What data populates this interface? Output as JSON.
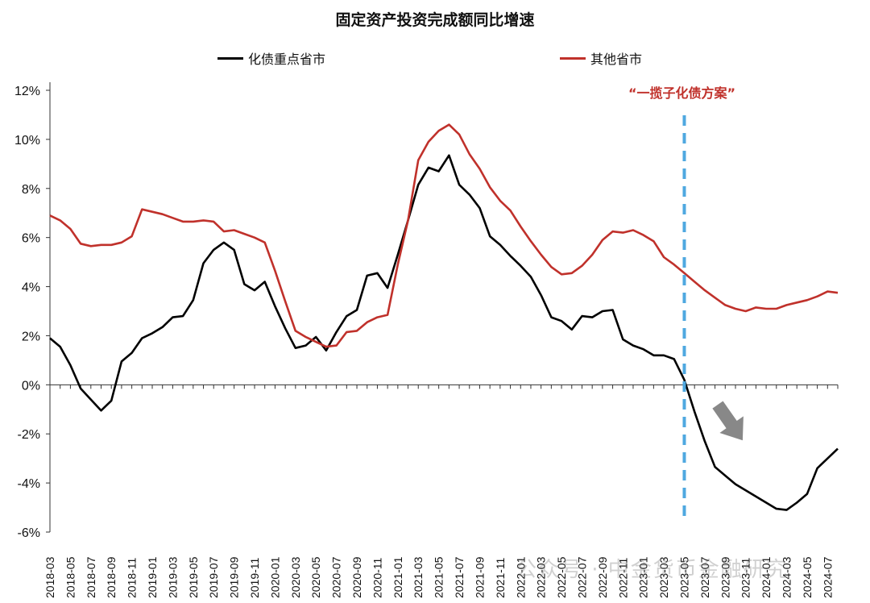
{
  "chart_data": {
    "type": "line",
    "title": "固定资产投资完成额同比增速",
    "xlabel": "",
    "ylabel": "",
    "ylim": [
      -6,
      12
    ],
    "yticks": [
      -6,
      -4,
      -2,
      0,
      2,
      4,
      6,
      8,
      10,
      12
    ],
    "ytick_labels": [
      "-6%",
      "-4%",
      "-2%",
      "0%",
      "2%",
      "4%",
      "6%",
      "8%",
      "10%",
      "12%"
    ],
    "y_unit": "%",
    "x_tick_labels": [
      "2018-03",
      "2018-05",
      "2018-07",
      "2018-09",
      "2018-11",
      "2019-01",
      "2019-03",
      "2019-05",
      "2019-07",
      "2019-09",
      "2019-11",
      "2020-01",
      "2020-03",
      "2020-05",
      "2020-07",
      "2020-09",
      "2020-11",
      "2021-01",
      "2021-03",
      "2021-05",
      "2021-07",
      "2021-09",
      "2021-11",
      "2022-01",
      "2022-03",
      "2022-05",
      "2022-07",
      "2022-09",
      "2022-11",
      "2023-01",
      "2023-03",
      "2023-05",
      "2023-07",
      "2023-09",
      "2023-11",
      "2024-01",
      "2024-03",
      "2024-05",
      "2024-07"
    ],
    "x": [
      "2018-03",
      "2018-04",
      "2018-05",
      "2018-06",
      "2018-07",
      "2018-08",
      "2018-09",
      "2018-10",
      "2018-11",
      "2018-12",
      "2019-01",
      "2019-02",
      "2019-03",
      "2019-04",
      "2019-05",
      "2019-06",
      "2019-07",
      "2019-08",
      "2019-09",
      "2019-10",
      "2019-11",
      "2019-12",
      "2020-01",
      "2020-02",
      "2020-03",
      "2020-04",
      "2020-05",
      "2020-06",
      "2020-07",
      "2020-08",
      "2020-09",
      "2020-10",
      "2020-11",
      "2020-12",
      "2021-01",
      "2021-02",
      "2021-03",
      "2021-04",
      "2021-05",
      "2021-06",
      "2021-07",
      "2021-08",
      "2021-09",
      "2021-10",
      "2021-11",
      "2021-12",
      "2022-01",
      "2022-02",
      "2022-03",
      "2022-04",
      "2022-05",
      "2022-06",
      "2022-07",
      "2022-08",
      "2022-09",
      "2022-10",
      "2022-11",
      "2022-12",
      "2023-01",
      "2023-02",
      "2023-03",
      "2023-04",
      "2023-05",
      "2023-06",
      "2023-07",
      "2023-08",
      "2023-09",
      "2023-10",
      "2023-11",
      "2023-12",
      "2024-01",
      "2024-02",
      "2024-03",
      "2024-04",
      "2024-05",
      "2024-06",
      "2024-07",
      "2024-08"
    ],
    "series": [
      {
        "name": "化债重点省市",
        "color": "#000000",
        "values": [
          1.9,
          1.55,
          0.8,
          -0.15,
          -0.6,
          -1.05,
          -0.65,
          0.95,
          1.3,
          1.9,
          2.1,
          2.35,
          2.75,
          2.8,
          3.45,
          4.95,
          5.5,
          5.8,
          5.5,
          4.1,
          3.85,
          4.2,
          3.2,
          2.3,
          1.5,
          1.6,
          1.95,
          1.4,
          2.15,
          2.8,
          3.05,
          4.45,
          4.55,
          3.95,
          5.3,
          6.7,
          8.15,
          8.85,
          8.7,
          9.35,
          8.15,
          7.75,
          7.2,
          6.05,
          5.7,
          5.25,
          4.85,
          4.4,
          3.65,
          2.75,
          2.6,
          2.25,
          2.8,
          2.75,
          3.0,
          3.05,
          1.85,
          1.6,
          1.45,
          1.2,
          1.2,
          1.05,
          0.2,
          -1.1,
          -2.3,
          -3.35,
          -3.7,
          -4.05,
          -4.3,
          -4.55,
          -4.8,
          -5.05,
          -5.1,
          -4.8,
          -4.45,
          -3.4,
          -3.0,
          -2.6
        ]
      },
      {
        "name": "其他省市",
        "color": "#c0312b",
        "values": [
          6.9,
          6.7,
          6.35,
          5.75,
          5.65,
          5.7,
          5.7,
          5.8,
          6.05,
          7.15,
          7.05,
          6.95,
          6.8,
          6.65,
          6.65,
          6.7,
          6.65,
          6.25,
          6.3,
          6.15,
          6.0,
          5.8,
          4.65,
          3.4,
          2.2,
          1.95,
          1.75,
          1.55,
          1.6,
          2.15,
          2.2,
          2.55,
          2.75,
          2.85,
          4.9,
          6.7,
          9.15,
          9.9,
          10.35,
          10.6,
          10.2,
          9.4,
          8.8,
          8.05,
          7.5,
          7.1,
          6.45,
          5.85,
          5.3,
          4.8,
          4.5,
          4.55,
          4.85,
          5.3,
          5.9,
          6.25,
          6.2,
          6.3,
          6.1,
          5.85,
          5.2,
          4.9,
          4.55,
          4.2,
          3.85,
          3.55,
          3.25,
          3.1,
          3.0,
          3.15,
          3.1,
          3.1,
          3.25,
          3.35,
          3.45,
          3.6,
          3.8,
          3.75
        ]
      }
    ],
    "marker_line": {
      "x": "2023-05",
      "color": "#4fa8e0",
      "style": "dashed"
    },
    "annotation": {
      "text": "“一揽子化债方案”",
      "color": "#c0312b"
    },
    "trend_arrow": {
      "direction": "down",
      "color": "#888888"
    },
    "legend": {
      "placement": "top"
    },
    "grid": false
  },
  "watermark": {
    "text": "公众号 · 中金货币金融研究"
  }
}
